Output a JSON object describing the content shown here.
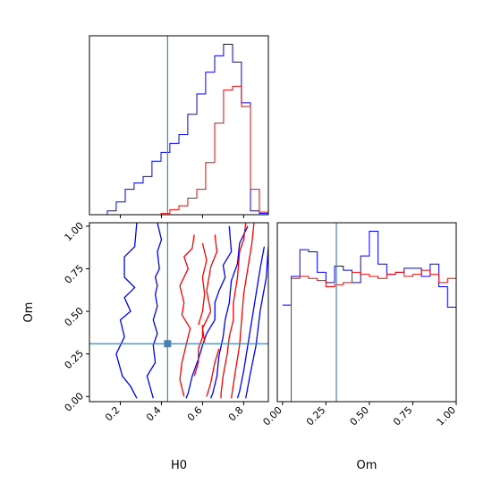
{
  "chart_data": {
    "type": "corner",
    "parameters": [
      "H0",
      "Om"
    ],
    "truth": {
      "H0": 0.43,
      "Om": 0.31
    },
    "colors": {
      "series_a": "#0000ff",
      "series_b": "#ff0000",
      "truth": "#4682b4"
    },
    "panels": [
      {
        "id": "hist_H0",
        "type": "histogram",
        "xlim": [
          0.05,
          0.92
        ],
        "series": [
          {
            "color": "#0000ff",
            "edges": [
              0.05,
              0.093,
              0.137,
              0.18,
              0.224,
              0.267,
              0.311,
              0.354,
              0.398,
              0.441,
              0.485,
              0.528,
              0.572,
              0.615,
              0.659,
              0.702,
              0.746,
              0.789,
              0.833,
              0.876,
              0.92
            ],
            "counts": [
              0,
              0,
              0.3,
              1.0,
              2.0,
              2.5,
              3.0,
              4.2,
              4.9,
              5.6,
              6.3,
              7.9,
              9.5,
              11.2,
              12.5,
              13.4,
              12.0,
              8.8,
              0.3,
              0.1
            ]
          },
          {
            "color": "#ff0000",
            "edges": [
              0.05,
              0.093,
              0.137,
              0.18,
              0.224,
              0.267,
              0.311,
              0.354,
              0.398,
              0.441,
              0.485,
              0.528,
              0.572,
              0.615,
              0.659,
              0.702,
              0.746,
              0.789,
              0.833,
              0.876,
              0.92
            ],
            "counts": [
              0,
              0,
              0,
              0,
              0,
              0,
              0,
              0,
              0.1,
              0.4,
              0.7,
              1.3,
              2.0,
              4.1,
              7.2,
              9.8,
              10.1,
              8.5,
              2.0,
              0.2
            ]
          }
        ]
      },
      {
        "id": "hist_Om",
        "type": "histogram",
        "xlim": [
          -0.03,
          1.0
        ],
        "xticks": [
          "0.00",
          "0.25",
          "0.50",
          "0.75",
          "1.00"
        ],
        "xtick_values": [
          0.0,
          0.25,
          0.5,
          0.75,
          1.0
        ],
        "series": [
          {
            "color": "#0000ff",
            "edges": [
              0,
              0.05,
              0.1,
              0.15,
              0.2,
              0.25,
              0.3,
              0.35,
              0.4,
              0.45,
              0.5,
              0.55,
              0.6,
              0.65,
              0.7,
              0.75,
              0.8,
              0.85,
              0.9,
              0.95,
              1.0
            ],
            "counts": [
              4.7,
              6.1,
              7.4,
              7.3,
              6.3,
              5.8,
              6.6,
              6.4,
              5.8,
              7.1,
              8.3,
              6.7,
              6.2,
              6.3,
              6.5,
              6.5,
              6.1,
              6.7,
              5.6,
              4.6
            ]
          },
          {
            "color": "#ff0000",
            "edges": [
              0,
              0.05,
              0.1,
              0.15,
              0.2,
              0.25,
              0.3,
              0.35,
              0.4,
              0.45,
              0.5,
              0.55,
              0.6,
              0.65,
              0.7,
              0.75,
              0.8,
              0.85,
              0.9,
              0.95,
              1.0
            ],
            "counts": [
              0,
              6.0,
              6.1,
              6.0,
              5.9,
              5.6,
              5.7,
              5.8,
              6.3,
              6.2,
              6.1,
              6.0,
              6.2,
              6.3,
              6.1,
              6.2,
              6.4,
              6.2,
              5.8,
              6.0
            ]
          }
        ]
      },
      {
        "id": "contour_H0_Om",
        "type": "contour",
        "xlim": [
          0.05,
          0.92
        ],
        "ylim": [
          -0.03,
          1.02
        ],
        "xlabel": "H0",
        "ylabel": "Om",
        "xticks": [
          "0.2",
          "0.4",
          "0.6",
          "0.8"
        ],
        "xtick_values": [
          0.2,
          0.4,
          0.6,
          0.8
        ],
        "yticks": [
          "0.00",
          "0.25",
          "0.50",
          "0.75",
          "1.00"
        ],
        "ytick_values": [
          0.0,
          0.25,
          0.5,
          0.75,
          1.0
        ],
        "series": [
          {
            "color": "#0000ff",
            "contours": [
              [
                [
                  0.28,
                  1.02
                ],
                [
                  0.27,
                  0.88
                ],
                [
                  0.22,
                  0.82
                ],
                [
                  0.22,
                  0.7
                ],
                [
                  0.27,
                  0.64
                ],
                [
                  0.22,
                  0.58
                ],
                [
                  0.25,
                  0.5
                ],
                [
                  0.2,
                  0.45
                ],
                [
                  0.22,
                  0.35
                ],
                [
                  0.18,
                  0.25
                ],
                [
                  0.21,
                  0.12
                ],
                [
                  0.25,
                  0.06
                ],
                [
                  0.28,
                  -0.01
                ]
              ],
              [
                [
                  0.36,
                  -0.01
                ],
                [
                  0.33,
                  0.12
                ],
                [
                  0.37,
                  0.2
                ],
                [
                  0.36,
                  0.3
                ],
                [
                  0.38,
                  0.37
                ],
                [
                  0.36,
                  0.45
                ],
                [
                  0.38,
                  0.53
                ],
                [
                  0.37,
                  0.6
                ],
                [
                  0.38,
                  0.65
                ],
                [
                  0.37,
                  0.7
                ],
                [
                  0.39,
                  0.75
                ],
                [
                  0.38,
                  0.85
                ],
                [
                  0.4,
                  0.92
                ],
                [
                  0.38,
                  1.02
                ]
              ],
              [
                [
                  0.73,
                  1.0
                ],
                [
                  0.74,
                  0.85
                ],
                [
                  0.7,
                  0.77
                ],
                [
                  0.71,
                  0.7
                ],
                [
                  0.68,
                  0.62
                ],
                [
                  0.66,
                  0.55
                ],
                [
                  0.66,
                  0.45
                ],
                [
                  0.62,
                  0.37
                ],
                [
                  0.6,
                  0.3
                ],
                [
                  0.58,
                  0.22
                ],
                [
                  0.55,
                  0.12
                ],
                [
                  0.53,
                  0.02
                ],
                [
                  0.52,
                  -0.01
                ]
              ],
              [
                [
                  0.82,
                  1.0
                ],
                [
                  0.78,
                  0.9
                ],
                [
                  0.77,
                  0.78
                ],
                [
                  0.74,
                  0.68
                ],
                [
                  0.73,
                  0.55
                ],
                [
                  0.71,
                  0.45
                ],
                [
                  0.7,
                  0.35
                ],
                [
                  0.68,
                  0.24
                ],
                [
                  0.67,
                  0.12
                ],
                [
                  0.65,
                  0.02
                ],
                [
                  0.64,
                  -0.01
                ]
              ],
              [
                [
                  0.9,
                  0.88
                ],
                [
                  0.88,
                  0.75
                ],
                [
                  0.86,
                  0.6
                ],
                [
                  0.84,
                  0.45
                ],
                [
                  0.82,
                  0.3
                ],
                [
                  0.8,
                  0.15
                ],
                [
                  0.78,
                  0.03
                ],
                [
                  0.77,
                  -0.01
                ]
              ],
              [
                [
                  0.92,
                  0.88
                ],
                [
                  0.91,
                  0.7
                ],
                [
                  0.88,
                  0.5
                ],
                [
                  0.86,
                  0.3
                ],
                [
                  0.83,
                  0.12
                ],
                [
                  0.81,
                  -0.01
                ]
              ]
            ]
          },
          {
            "color": "#ff0000",
            "contours": [
              [
                [
                  0.56,
                  0.95
                ],
                [
                  0.55,
                  0.87
                ],
                [
                  0.51,
                  0.82
                ],
                [
                  0.53,
                  0.75
                ],
                [
                  0.49,
                  0.65
                ],
                [
                  0.51,
                  0.55
                ],
                [
                  0.5,
                  0.48
                ],
                [
                  0.54,
                  0.4
                ],
                [
                  0.52,
                  0.3
                ],
                [
                  0.5,
                  0.2
                ],
                [
                  0.49,
                  0.1
                ],
                [
                  0.51,
                  0.0
                ]
              ],
              [
                [
                  0.6,
                  0.9
                ],
                [
                  0.62,
                  0.8
                ],
                [
                  0.6,
                  0.7
                ],
                [
                  0.61,
                  0.6
                ],
                [
                  0.6,
                  0.5
                ],
                [
                  0.58,
                  0.42
                ]
              ],
              [
                [
                  0.6,
                  0.42
                ],
                [
                  0.6,
                  0.35
                ],
                [
                  0.58,
                  0.28
                ],
                [
                  0.58,
                  0.2
                ],
                [
                  0.56,
                  0.12
                ]
              ],
              [
                [
                  0.66,
                  0.95
                ],
                [
                  0.67,
                  0.85
                ],
                [
                  0.64,
                  0.76
                ],
                [
                  0.62,
                  0.62
                ],
                [
                  0.64,
                  0.5
                ],
                [
                  0.6,
                  0.4
                ],
                [
                  0.61,
                  0.32
                ]
              ],
              [
                [
                  0.68,
                  0.28
                ],
                [
                  0.66,
                  0.2
                ],
                [
                  0.64,
                  0.08
                ],
                [
                  0.62,
                  0.0
                ]
              ],
              [
                [
                  0.81,
                  1.02
                ],
                [
                  0.8,
                  0.92
                ],
                [
                  0.78,
                  0.85
                ],
                [
                  0.77,
                  0.7
                ],
                [
                  0.75,
                  0.55
                ],
                [
                  0.75,
                  0.45
                ],
                [
                  0.73,
                  0.35
                ],
                [
                  0.72,
                  0.25
                ],
                [
                  0.7,
                  0.12
                ],
                [
                  0.69,
                  0.02
                ],
                [
                  0.69,
                  -0.01
                ]
              ],
              [
                [
                  0.85,
                  1.02
                ],
                [
                  0.84,
                  0.9
                ],
                [
                  0.82,
                  0.75
                ],
                [
                  0.8,
                  0.6
                ],
                [
                  0.79,
                  0.45
                ],
                [
                  0.78,
                  0.3
                ],
                [
                  0.76,
                  0.15
                ],
                [
                  0.74,
                  -0.01
                ]
              ]
            ]
          }
        ]
      }
    ]
  }
}
